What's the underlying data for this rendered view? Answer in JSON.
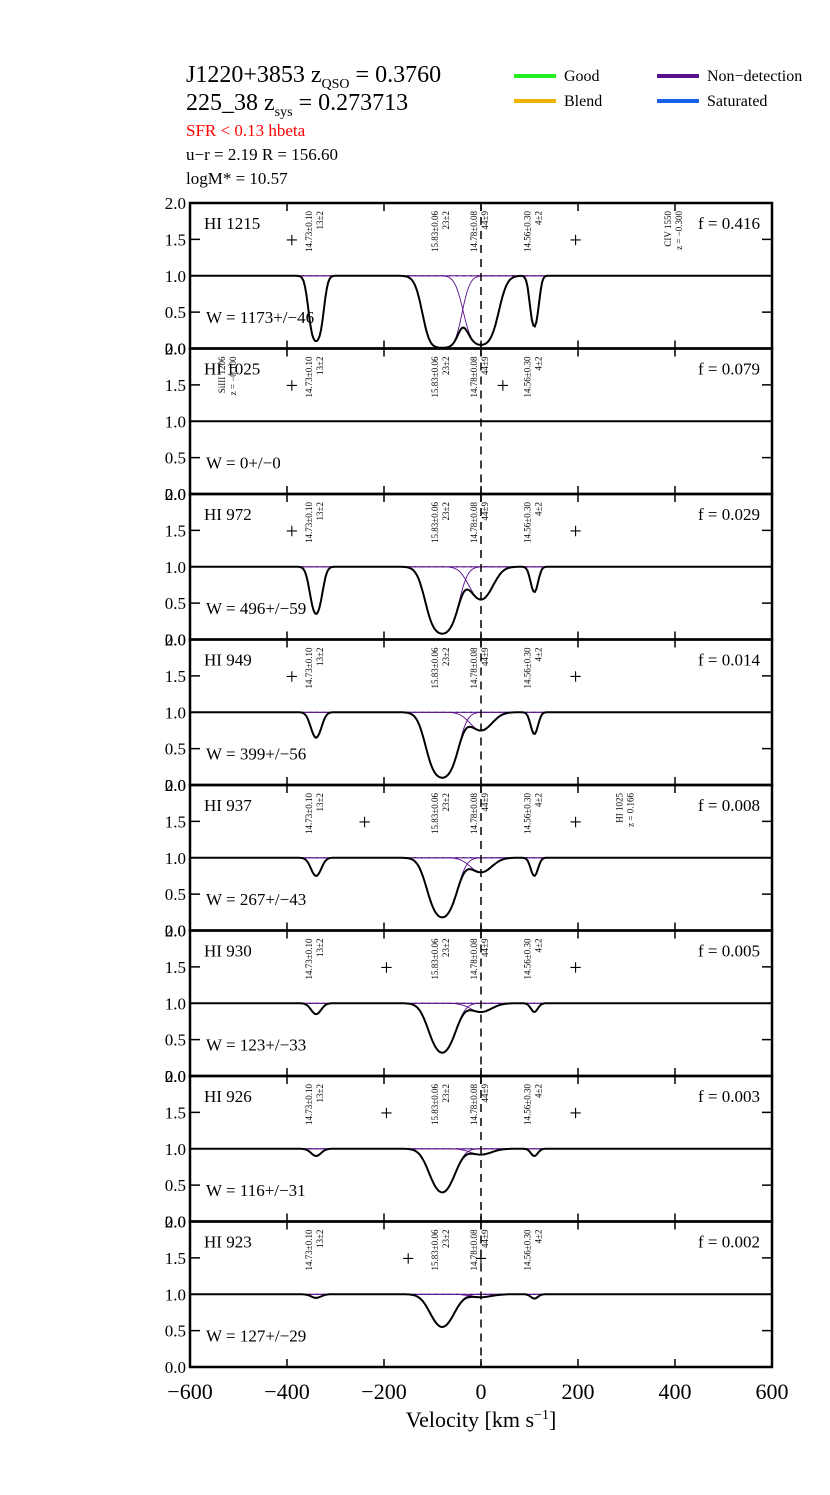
{
  "header": {
    "object": "J1220+3853",
    "zqso_prefix": "z",
    "zqso_sub": "QSO",
    "zqso_value": " = 0.3760",
    "id": "225_38",
    "zsys_prefix": "z",
    "zsys_sub": "sys",
    "zsys_value": " = 0.273713",
    "sfr": "SFR <  0.13  hbeta",
    "color_radius": "u−r = 2.19   R = 156.60",
    "mass": "logM* =  10.57"
  },
  "legend": [
    {
      "label": "Good",
      "color": "#22ee22"
    },
    {
      "label": "Blend",
      "color": "#f0b400"
    },
    {
      "label": "Non−detection",
      "color": "#5a0f8c"
    },
    {
      "label": "Saturated",
      "color": "#1560e6"
    }
  ],
  "colors": {
    "good": "#22ee22",
    "blend": "#f0b400",
    "saturated": "#1560e6",
    "error": "#ff0000",
    "model": "#000000",
    "component": "#5a0f8c"
  },
  "chart_data": {
    "type": "line",
    "xlabel": "Velocity [km s",
    "xlabel_sup": "−1",
    "xlabel_end": "]",
    "xlim": [
      -600,
      600
    ],
    "ylim": [
      0,
      2.0
    ],
    "x_ticks": [
      "−600",
      "−400",
      "−200",
      "0",
      "200",
      "400",
      "600"
    ],
    "x_tick_values": [
      -600,
      -400,
      -200,
      0,
      200,
      400,
      600
    ],
    "y_ticks": [
      "0.0",
      "0.5",
      "1.0",
      "1.5",
      "2.0"
    ],
    "y_tick_values": [
      0,
      0.5,
      1.0,
      1.5,
      2.0
    ],
    "components": [
      {
        "v": -340,
        "logN": "14.73±0.10",
        "b": "13±2"
      },
      {
        "v": -80,
        "logN": "15.83±0.06",
        "b": "23±2"
      },
      {
        "v": 0,
        "logN": "14.78±0.08",
        "b": "44±9"
      },
      {
        "v": 110,
        "logN": "14.56±0.30",
        "b": "4±2"
      }
    ],
    "panels": [
      {
        "ion": "HI 1215",
        "f": "f = 0.416",
        "w": "W = 1173+/−46",
        "flag": "saturated",
        "range": [
          -300,
          200
        ],
        "crosses": [
          -390,
          195
        ],
        "sat": 0.0,
        "depths": [
          0.9,
          1.0,
          0.95,
          0.7
        ],
        "noise": 0.17,
        "err": 0.2,
        "line_id": "CIV 1550",
        "line_z": "z = −0.300",
        "line_v": 400
      },
      {
        "ion": "HI 1025",
        "f": "f = 0.079",
        "w": "W = 0+/−0",
        "flag": "blend",
        "range": [
          -200,
          50
        ],
        "crosses": [
          -390,
          45
        ],
        "sat": 1.6,
        "depths": [
          0,
          0,
          0,
          0
        ],
        "noise": 0.15,
        "err": 0.22,
        "line_id": "SiIII 1206",
        "line_z": "z = −0.100",
        "line_v": -520
      },
      {
        "ion": "HI 972",
        "f": "f = 0.029",
        "w": "W = 496+/−59",
        "flag": "saturated",
        "range": [
          -400,
          200
        ],
        "crosses": [
          -390,
          195
        ],
        "sat": 0.05,
        "depths": [
          0.65,
          0.92,
          0.45,
          0.35
        ],
        "noise": 0.13,
        "err": 0.2,
        "line_id": "",
        "line_z": "",
        "line_v": 0
      },
      {
        "ion": "HI 949",
        "f": "f = 0.014",
        "w": "W = 399+/−56",
        "flag": "saturated",
        "range": [
          -400,
          200
        ],
        "crosses": [
          -390,
          195
        ],
        "sat": 0.08,
        "depths": [
          0.35,
          0.9,
          0.25,
          0.3
        ],
        "noise": 0.16,
        "err": 0.25,
        "line_id": "",
        "line_z": "",
        "line_v": 0
      },
      {
        "ion": "HI 937",
        "f": "f = 0.008",
        "w": "W = 267+/−43",
        "flag": "good",
        "range": [
          -250,
          200
        ],
        "crosses": [
          -240,
          195
        ],
        "sat": 0.0,
        "depths": [
          0.25,
          0.82,
          0.2,
          0.25
        ],
        "noise": 0.15,
        "err": 0.25,
        "line_id": "HI 1025",
        "line_z": "z = 0.166",
        "line_v": 300
      },
      {
        "ion": "HI 930",
        "f": "f = 0.005",
        "w": "W = 123+/−33",
        "flag": "good",
        "range": [
          -200,
          -20
        ],
        "crosses": [
          -195,
          195
        ],
        "sat": 0.0,
        "depths": [
          0.15,
          0.68,
          0.12,
          0.12
        ],
        "noise": 0.17,
        "err": 0.25,
        "line_id": "",
        "line_z": "",
        "line_v": 0
      },
      {
        "ion": "HI 926",
        "f": "f = 0.003",
        "w": "W = 116+/−31",
        "flag": "good",
        "range": [
          -200,
          -20
        ],
        "crosses": [
          -195,
          195
        ],
        "sat": 0.0,
        "depths": [
          0.1,
          0.6,
          0.08,
          0.1
        ],
        "noise": 0.17,
        "err": 0.28,
        "line_id": "",
        "line_z": "",
        "line_v": 0
      },
      {
        "ion": "HI 923",
        "f": "f = 0.002",
        "w": "W = 127+/−29",
        "flag": "good",
        "range": [
          -170,
          -60
        ],
        "crosses": [
          -150,
          0
        ],
        "sat": 0.0,
        "depths": [
          0.05,
          0.45,
          0.04,
          0.06
        ],
        "noise": 0.18,
        "err": 0.28,
        "line_id": "",
        "line_z": "",
        "line_v": 0
      }
    ]
  }
}
